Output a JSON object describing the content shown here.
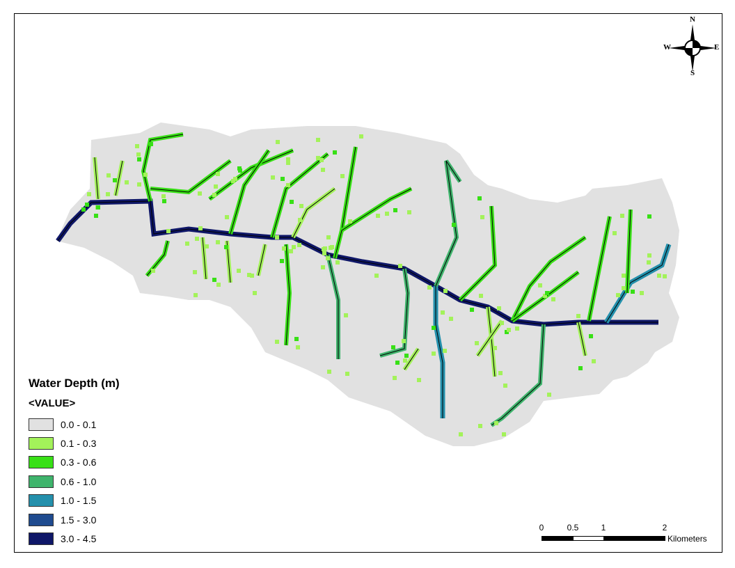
{
  "legend": {
    "title": "Water Depth (m)",
    "field": "<VALUE>",
    "classes": [
      {
        "label": "0.0 - 0.1",
        "color": "#e1e1e1"
      },
      {
        "label": "0.1 - 0.3",
        "color": "#a3f25a"
      },
      {
        "label": "0.3 - 0.6",
        "color": "#38e016"
      },
      {
        "label": "0.6 - 1.0",
        "color": "#3fb46c"
      },
      {
        "label": "1.0 - 1.5",
        "color": "#2490ac"
      },
      {
        "label": "1.5 - 3.0",
        "color": "#1f4b8f"
      },
      {
        "label": "3.0 - 4.5",
        "color": "#0f1768"
      }
    ]
  },
  "scalebar": {
    "ticks": [
      "0",
      "0.5",
      "1",
      "2"
    ],
    "unit": "Kilometers"
  },
  "compass": {
    "north": "N",
    "south": "S",
    "east": "E",
    "west": "W"
  }
}
